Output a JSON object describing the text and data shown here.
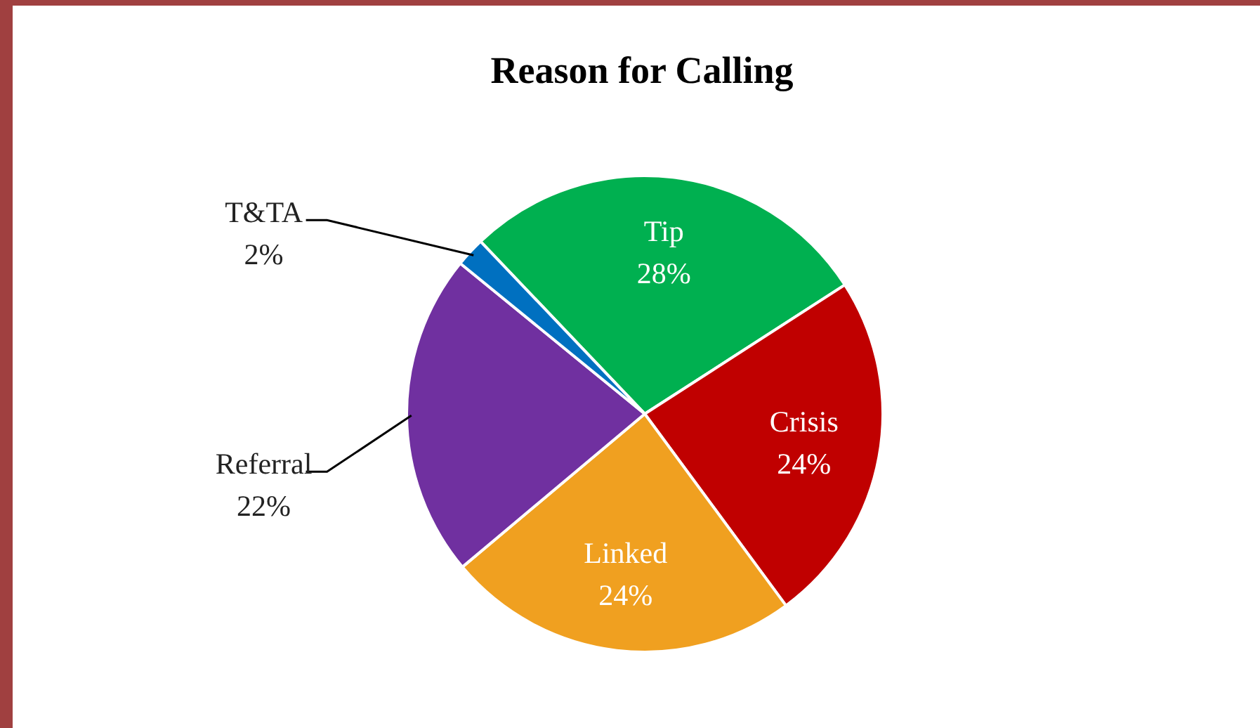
{
  "chart_data": {
    "type": "pie",
    "title": "Reason for Calling",
    "categories": [
      "Tip",
      "Crisis",
      "Linked",
      "Referral",
      "T&TA"
    ],
    "values": [
      28,
      24,
      24,
      22,
      2
    ],
    "colors": [
      "#00b050",
      "#c00000",
      "#f0a020",
      "#7030a0",
      "#0070c0"
    ],
    "value_labels": [
      "28%",
      "24%",
      "24%",
      "22%",
      "2%"
    ],
    "legend": false
  }
}
